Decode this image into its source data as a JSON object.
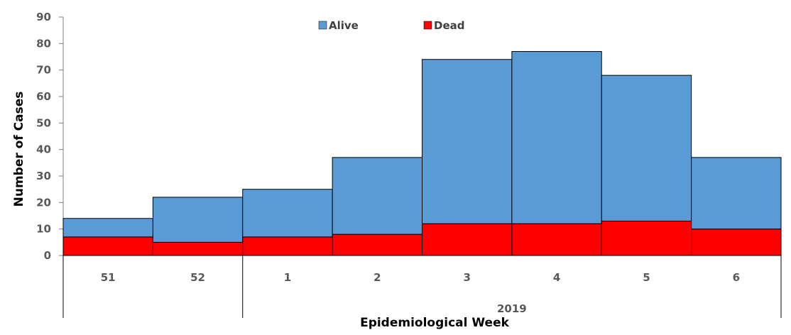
{
  "chart_data": {
    "type": "bar",
    "stacked": true,
    "categories": [
      "51",
      "52",
      "1",
      "2",
      "3",
      "4",
      "5",
      "6"
    ],
    "groups": [
      {
        "label": "",
        "from": 0,
        "to": 1
      },
      {
        "label": "2019",
        "from": 2,
        "to": 7
      }
    ],
    "series": [
      {
        "name": "Dead",
        "color": "#ff0000",
        "values": [
          7,
          5,
          7,
          8,
          12,
          12,
          13,
          10
        ]
      },
      {
        "name": "Alive",
        "color": "#5b9bd5",
        "values": [
          7,
          17,
          18,
          29,
          62,
          65,
          55,
          27
        ]
      }
    ],
    "legend": [
      "Alive",
      "Dead"
    ],
    "legend_position": "top-center",
    "xlabel": "Epidemiological Week",
    "ylabel": "Number of Cases",
    "ylim": [
      0,
      90
    ],
    "yticks": [
      0,
      10,
      20,
      30,
      40,
      50,
      60,
      70,
      80,
      90
    ],
    "grid": false
  }
}
